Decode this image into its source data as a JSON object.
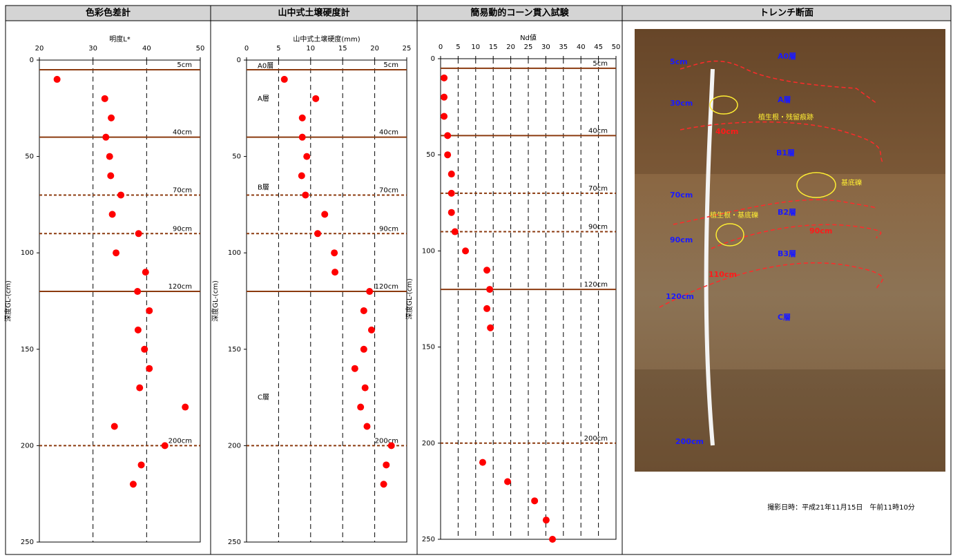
{
  "chart_data": [
    {
      "type": "scatter",
      "title": "色彩色差計",
      "x_label": "明度L*",
      "y_label": "深度GL-(cm)",
      "xlim": [
        20,
        50
      ],
      "xticks": [
        20,
        30,
        40,
        50
      ],
      "ylim": [
        250,
        0
      ],
      "yticks": [
        0,
        50,
        100,
        150,
        200,
        250
      ],
      "xgrid": true,
      "hline_color": "#8b3a0f",
      "hlines": [
        {
          "value": 5,
          "label": "5cm",
          "dashed": false
        },
        {
          "value": 40,
          "label": "40cm",
          "dashed": false
        },
        {
          "value": 70,
          "label": "70cm",
          "dashed": true
        },
        {
          "value": 90,
          "label": "90cm",
          "dashed": true
        },
        {
          "value": 120,
          "label": "120cm",
          "dashed": false
        },
        {
          "value": 200,
          "label": "200cm",
          "dashed": true
        }
      ],
      "series": [
        {
          "color": "#ff0000",
          "x": [
            23.3,
            32.2,
            33.4,
            32.4,
            33.1,
            33.3,
            35.2,
            33.6,
            38.5,
            34.3,
            39.8,
            38.3,
            40.5,
            38.4,
            39.6,
            40.5,
            38.7,
            47.2,
            34.0,
            43.4,
            39.0,
            37.5
          ],
          "values": [
            10,
            20,
            30,
            40,
            50,
            60,
            70,
            80,
            90,
            100,
            110,
            120,
            130,
            140,
            150,
            160,
            170,
            180,
            190,
            200,
            210,
            220
          ]
        }
      ]
    },
    {
      "type": "scatter",
      "title": "山中式土壌硬度計",
      "x_label": "山中式土壌硬度(mm)",
      "y_label": "深度GL-(cm)",
      "xlim": [
        0,
        25
      ],
      "xticks": [
        0,
        5,
        10,
        15,
        20,
        25
      ],
      "ylim": [
        250,
        0
      ],
      "yticks": [
        0,
        50,
        100,
        150,
        200,
        250
      ],
      "xgrid": true,
      "hline_color": "#8b3a0f",
      "hlines": [
        {
          "value": 5,
          "label": "5cm",
          "dashed": false
        },
        {
          "value": 40,
          "label": "40cm",
          "dashed": false
        },
        {
          "value": 70,
          "label": "70cm",
          "dashed": true
        },
        {
          "value": 90,
          "label": "90cm",
          "dashed": true
        },
        {
          "value": 120,
          "label": "120cm",
          "dashed": false
        },
        {
          "value": 200,
          "label": "200cm",
          "dashed": true
        }
      ],
      "annotations": [
        {
          "text": "A0層",
          "y": 3
        },
        {
          "text": "A層",
          "y": 20
        },
        {
          "text": "B層",
          "y": 66
        },
        {
          "text": "C層",
          "y": 175
        }
      ],
      "series": [
        {
          "color": "#ff0000",
          "x": [
            5.9,
            10.8,
            8.7,
            8.7,
            9.4,
            8.6,
            9.2,
            12.2,
            11.1,
            13.7,
            13.8,
            19.2,
            18.3,
            19.5,
            18.3,
            16.9,
            18.5,
            17.8,
            18.8,
            22.6,
            21.8,
            21.4
          ],
          "values": [
            10,
            20,
            30,
            40,
            50,
            60,
            70,
            80,
            90,
            100,
            110,
            120,
            130,
            140,
            150,
            160,
            170,
            180,
            190,
            200,
            210,
            220
          ]
        }
      ]
    },
    {
      "type": "scatter",
      "title": "簡易動的コーン貫入試験",
      "x_label": "Nd値",
      "y_label": "深度GL-(cm)",
      "xlim": [
        0,
        50
      ],
      "xticks": [
        0,
        5,
        10,
        15,
        20,
        25,
        30,
        35,
        40,
        45,
        50
      ],
      "ylim": [
        250,
        0
      ],
      "yticks": [
        0,
        50,
        100,
        150,
        200,
        250
      ],
      "xgrid": true,
      "hline_color": "#8b3a0f",
      "hlines": [
        {
          "value": 5,
          "label": "5cm",
          "dashed": false
        },
        {
          "value": 40,
          "label": "40cm",
          "dashed": false
        },
        {
          "value": 70,
          "label": "70cm",
          "dashed": true
        },
        {
          "value": 90,
          "label": "90cm",
          "dashed": true
        },
        {
          "value": 120,
          "label": "120cm",
          "dashed": false
        },
        {
          "value": 200,
          "label": "200cm",
          "dashed": true
        }
      ],
      "series": [
        {
          "color": "#ff0000",
          "x": [
            1.0,
            1.0,
            1.0,
            2.0,
            2.0,
            3.1,
            3.1,
            3.1,
            4.1,
            7.1,
            13.2,
            14.0,
            13.2,
            14.2,
            12.0,
            19.1,
            26.8,
            30.1,
            31.9
          ],
          "values": [
            10,
            20,
            30,
            40,
            50,
            60,
            70,
            80,
            90,
            100,
            110,
            120,
            130,
            140,
            210,
            220,
            230,
            240,
            250
          ]
        }
      ]
    }
  ],
  "photo": {
    "title": "トレンチ断面",
    "depth_labels": [
      "5cm",
      "30cm",
      "70cm",
      "90cm",
      "120cm",
      "200cm"
    ],
    "layer_labels": [
      "A0層",
      "A層",
      "B1層",
      "B2層",
      "B3層",
      "C層"
    ],
    "boundary_labels": [
      "40cm",
      "90cm",
      "110cm"
    ],
    "notes": [
      "植生根・残留痕跡",
      "基底礫",
      "植生根・基底礫"
    ],
    "caption": "撮影日時：平成21年11月15日　午前11時10分"
  }
}
